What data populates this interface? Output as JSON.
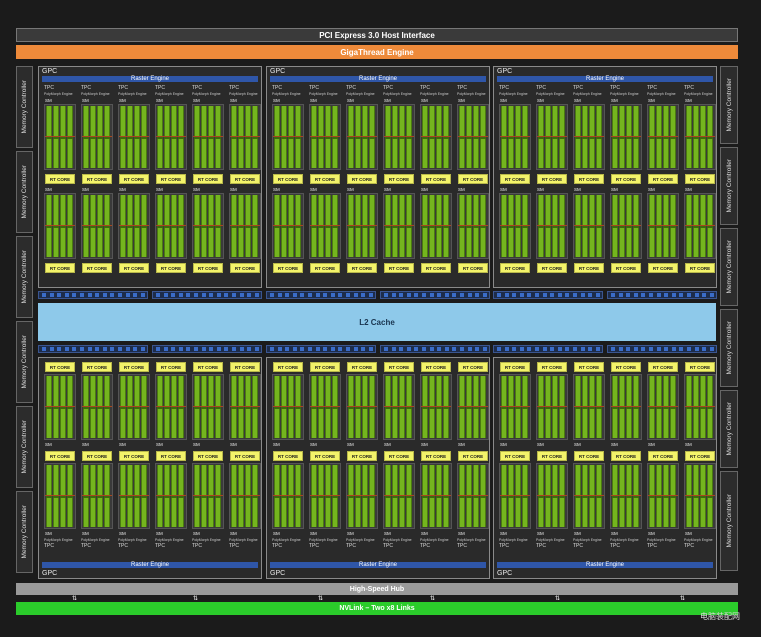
{
  "top": {
    "pcie": "PCI Express 3.0 Host Interface",
    "giga": "GigaThread Engine"
  },
  "memory_controller_label": "Memory Controller",
  "gpc": {
    "label": "GPC",
    "raster": "Raster Engine",
    "tpc": "TPC",
    "polymorph": "PolyMorph Engine",
    "sm": "SM",
    "rt": "RT CORE"
  },
  "l2": "L2 Cache",
  "bottom": {
    "hub": "High-Speed Hub",
    "nvlink": "NVLink – Two x8 Links"
  },
  "watermark": "电脑装配网",
  "colors": {
    "accent_orange": "#ee8a3a",
    "raster_blue": "#2f56a8",
    "rt_yellow": "#f3f36a",
    "cuda_green": "#74b51e",
    "l2_blue": "#8ec9ea",
    "nvlink_green": "#2bcc2b"
  }
}
